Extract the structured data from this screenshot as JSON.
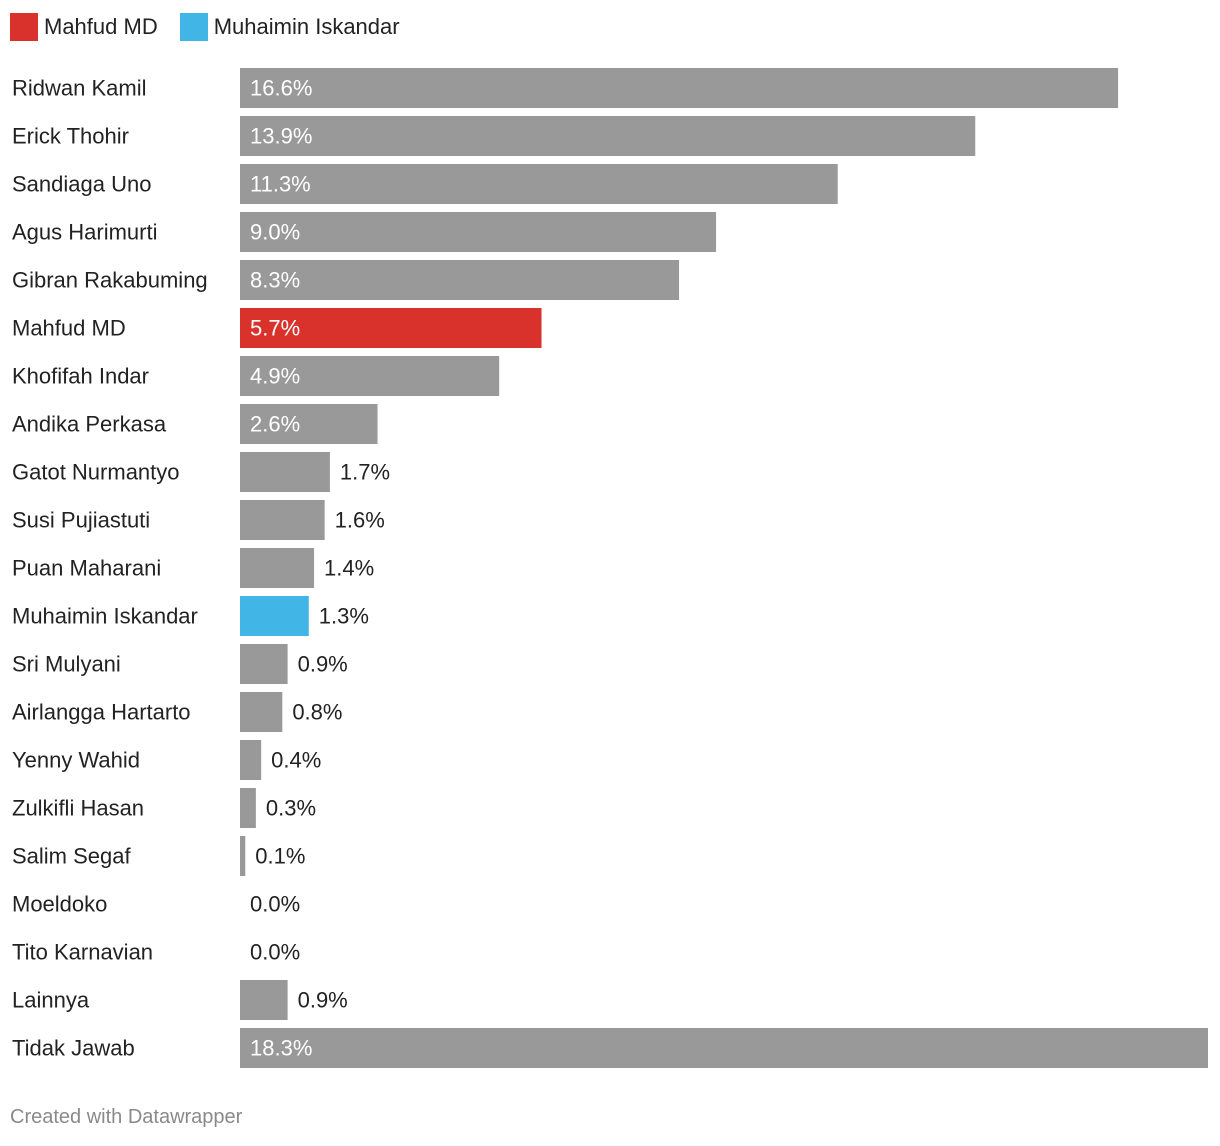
{
  "chart_data": {
    "type": "bar",
    "orientation": "horizontal",
    "categories": [
      "Ridwan Kamil",
      "Erick Thohir",
      "Sandiaga Uno",
      "Agus Harimurti",
      "Gibran Rakabuming",
      "Mahfud MD",
      "Khofifah Indar",
      "Andika Perkasa",
      "Gatot Nurmantyo",
      "Susi Pujiastuti",
      "Puan Maharani",
      "Muhaimin Iskandar",
      "Sri Mulyani",
      "Airlangga Hartarto",
      "Yenny Wahid",
      "Zulkifli Hasan",
      "Salim Segaf",
      "Moeldoko",
      "Tito Karnavian",
      "Lainnya",
      "Tidak Jawab"
    ],
    "values": [
      16.6,
      13.9,
      11.3,
      9.0,
      8.3,
      5.7,
      4.9,
      2.6,
      1.7,
      1.6,
      1.4,
      1.3,
      0.9,
      0.8,
      0.4,
      0.3,
      0.1,
      0.0,
      0.0,
      0.9,
      18.3
    ],
    "labels": [
      "16.6%",
      "13.9%",
      "11.3%",
      "9.0%",
      "8.3%",
      "5.7%",
      "4.9%",
      "2.6%",
      "1.7%",
      "1.6%",
      "1.4%",
      "1.3%",
      "0.9%",
      "0.8%",
      "0.4%",
      "0.3%",
      "0.1%",
      "0.0%",
      "0.0%",
      "0.9%",
      "18.3%"
    ],
    "xlim": [
      0,
      18.3
    ],
    "unit": "%",
    "default_color": "#999999",
    "highlight_colors": {
      "Mahfud MD": "#d9312b",
      "Muhaimin Iskandar": "#41b6e6"
    },
    "legend": [
      {
        "label": "Mahfud MD",
        "color": "#d9312b"
      },
      {
        "label": "Muhaimin Iskandar",
        "color": "#41b6e6"
      }
    ],
    "legend_position": "top-left",
    "grid": false
  },
  "footer": {
    "credit": "Created with Datawrapper"
  }
}
